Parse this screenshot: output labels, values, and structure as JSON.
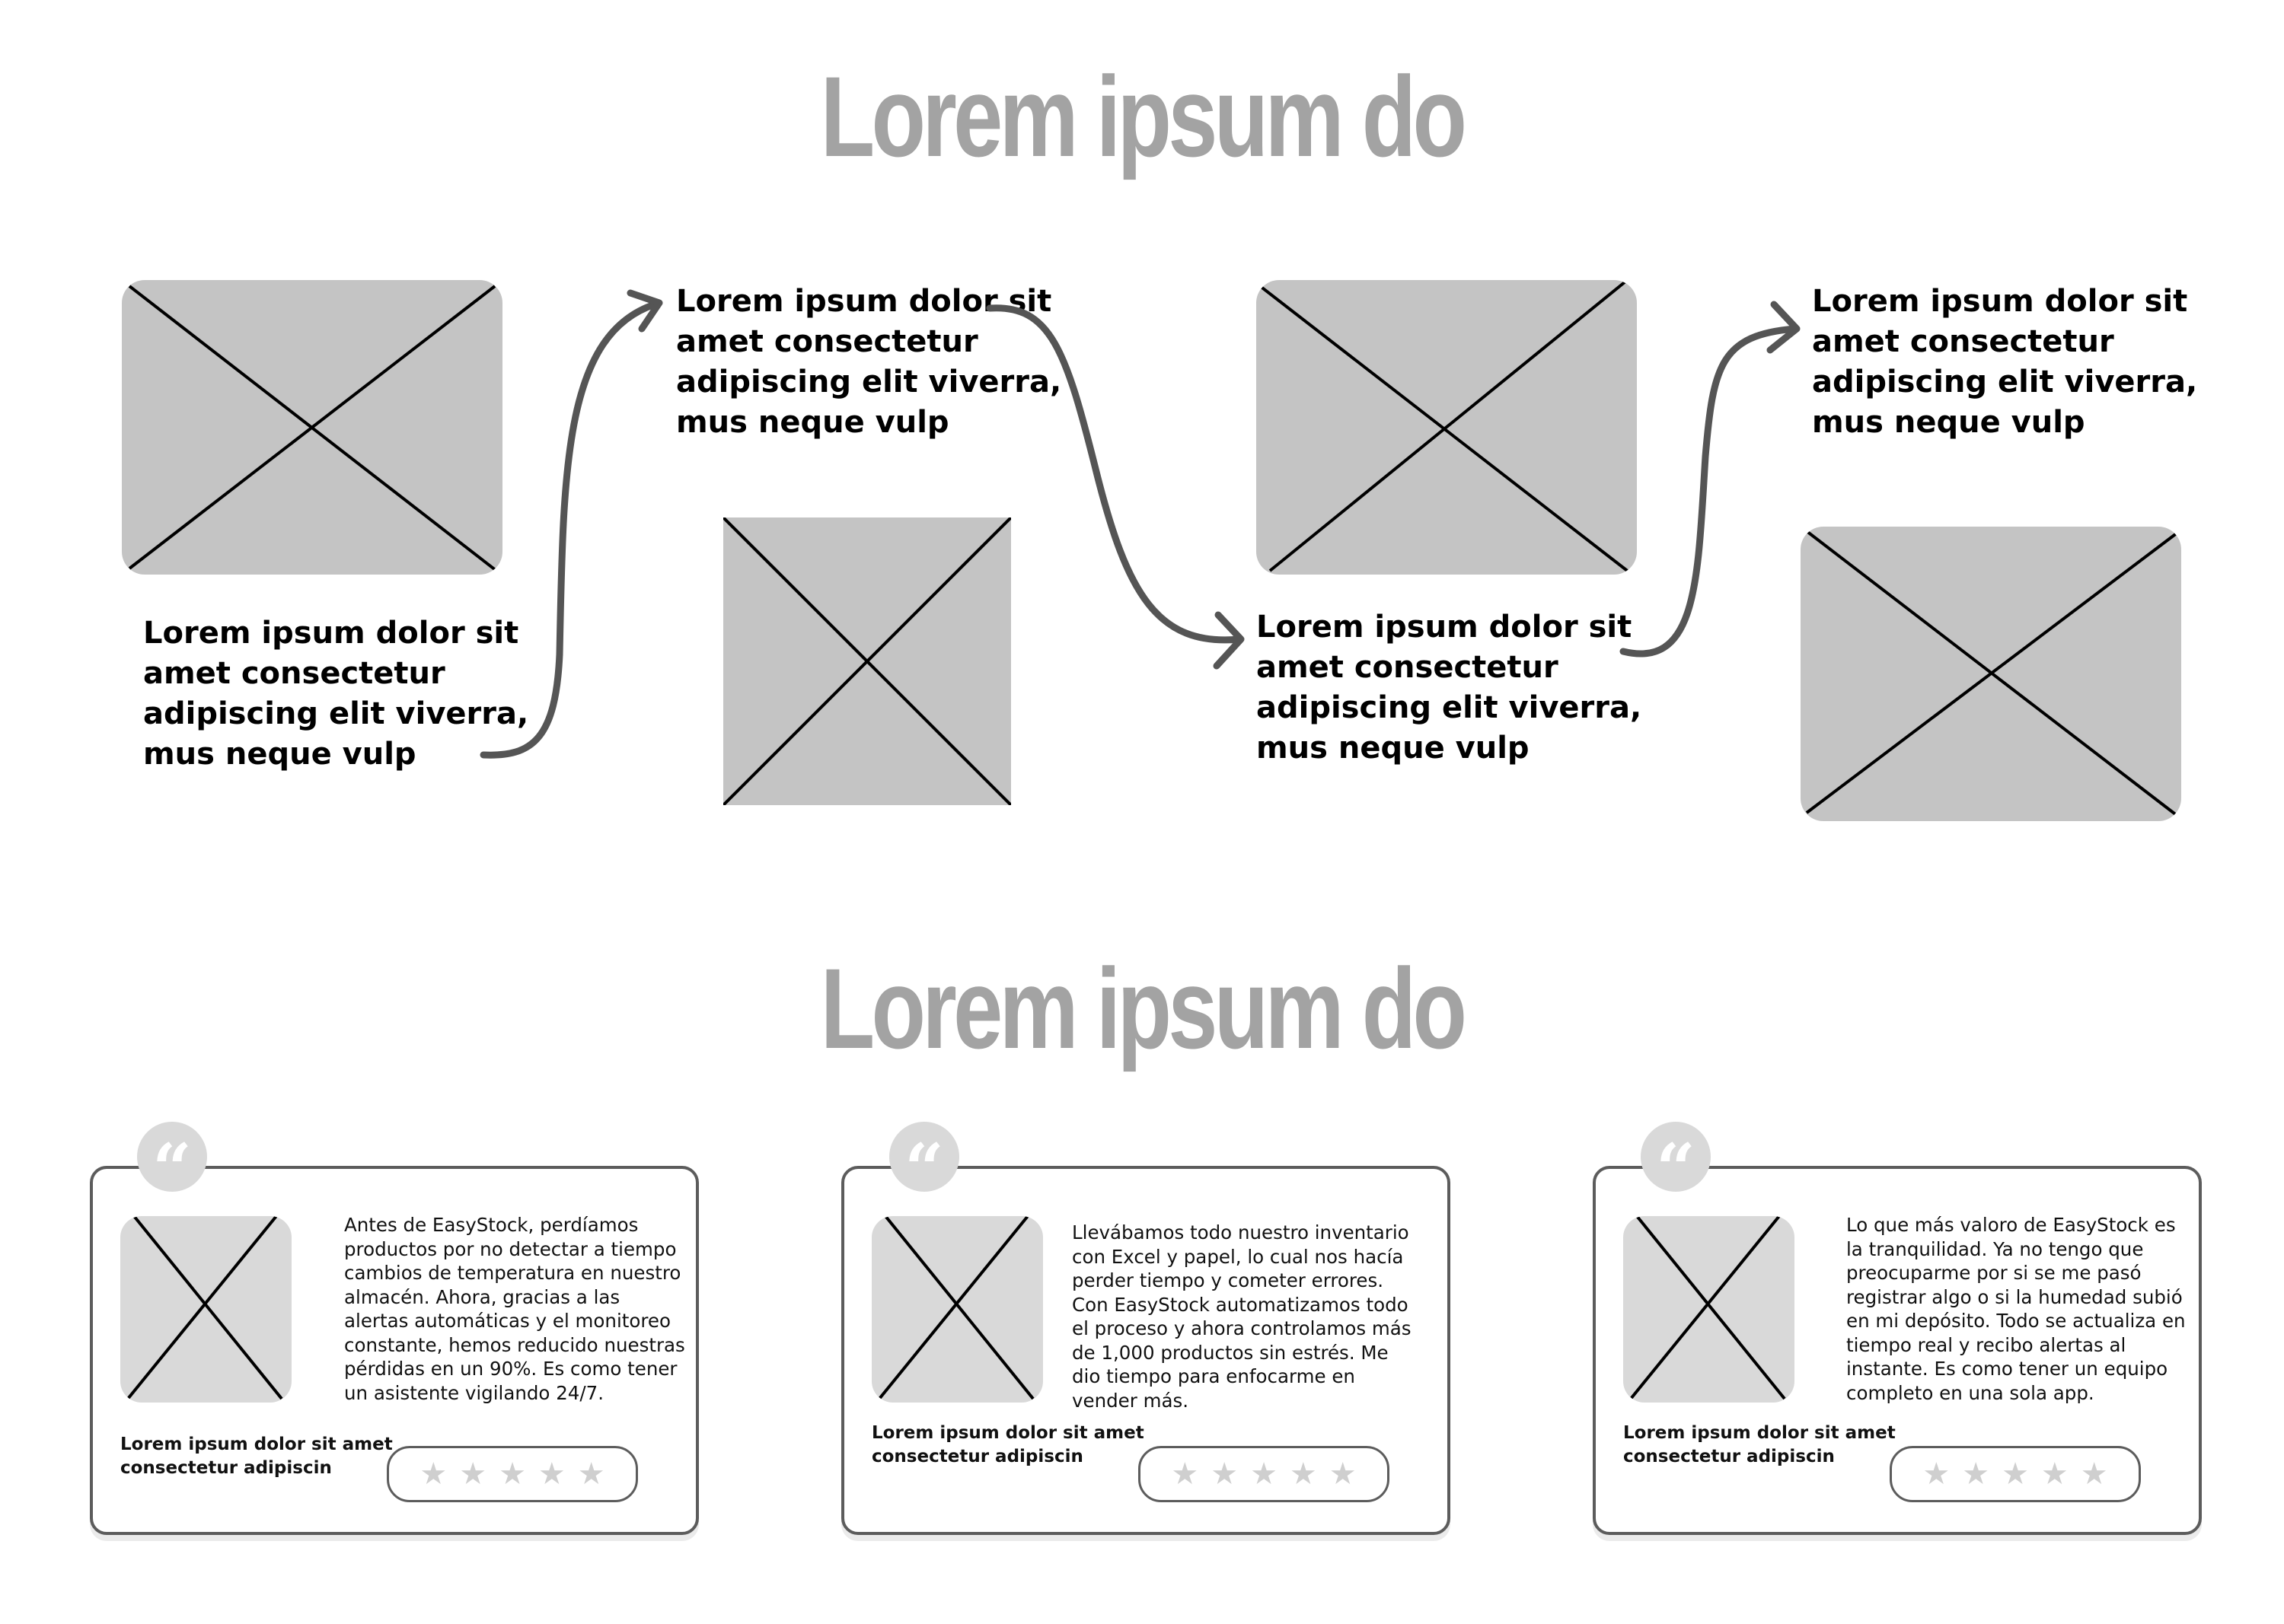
{
  "headings": {
    "top": "Lorem ipsum do",
    "bottom": "Lorem ipsum do"
  },
  "steps": [
    {
      "text": "Lorem ipsum dolor sit amet consectetur adipiscing elit viverra, mus neque vulp"
    },
    {
      "text": "Lorem ipsum dolor sit amet consectetur adipiscing elit viverra, mus neque vulp"
    },
    {
      "text": "Lorem ipsum dolor sit amet consectetur adipiscing elit viverra, mus neque vulp"
    },
    {
      "text": "Lorem ipsum dolor sit amet consectetur adipiscing elit viverra, mus neque vulp"
    }
  ],
  "testimonials": [
    {
      "quote_mark": "“",
      "text": "Antes de EasyStock, perdíamos productos por no detectar a tiempo cambios de temperatura en nuestro almacén. Ahora, gracias a las alertas automáticas y el monitoreo constante, hemos reducido nuestras pérdidas en un 90%. Es como tener un asistente vigilando 24/7.",
      "caption": "Lorem ipsum dolor sit amet consectetur adipiscin",
      "stars": [
        "★",
        "★",
        "★",
        "★",
        "★"
      ]
    },
    {
      "quote_mark": "“",
      "text": "Llevábamos todo nuestro inventario con Excel y papel, lo cual nos hacía perder tiempo y cometer errores. Con EasyStock automatizamos todo el proceso y ahora controlamos más de 1,000 productos sin estrés. Me dio tiempo para enfocarme en vender más.",
      "caption": "Lorem ipsum dolor sit amet consectetur adipiscin",
      "stars": [
        "★",
        "★",
        "★",
        "★",
        "★"
      ]
    },
    {
      "quote_mark": "“",
      "text": "Lo que más valoro de EasyStock es la tranquilidad. Ya no tengo que preocuparme por si se me pasó registrar algo o si la humedad subió en mi depósito. Todo se actualiza en tiempo real y recibo alertas al instante. Es como tener un equipo completo en una sola app.",
      "caption": "Lorem ipsum dolor sit amet consectetur adipiscin",
      "stars": [
        "★",
        "★",
        "★",
        "★",
        "★"
      ]
    }
  ],
  "colors": {
    "heading": "#a3a3a3",
    "placeholder": "#c4c4c4",
    "card_placeholder": "#d9d9d9",
    "arrow": "#555555",
    "card_border": "#5c5c5c",
    "star": "#cfcfcf"
  },
  "icons": {
    "placeholder": "image-placeholder-icon",
    "quote": "quote-icon",
    "star": "star-icon",
    "arrow": "curved-arrow-icon"
  }
}
